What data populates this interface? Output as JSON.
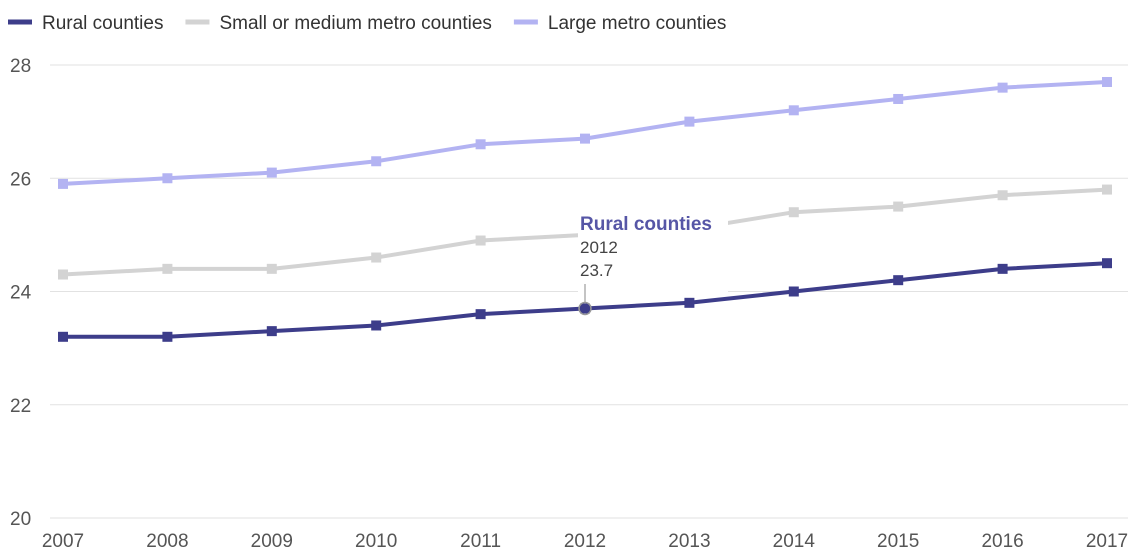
{
  "chart_data": {
    "type": "line",
    "title": "",
    "xlabel": "",
    "ylabel": "",
    "x": [
      2007,
      2008,
      2009,
      2010,
      2011,
      2012,
      2013,
      2014,
      2015,
      2016,
      2017
    ],
    "xtick_labels": [
      "2007",
      "2008",
      "2009",
      "2010",
      "2011",
      "2012",
      "2013",
      "2014",
      "2015",
      "2016",
      "2017"
    ],
    "ylim": [
      20,
      28
    ],
    "yticks": [
      20,
      22,
      24,
      26,
      28
    ],
    "ytick_labels": [
      "20",
      "22",
      "24",
      "26",
      "28"
    ],
    "grid": true,
    "legend_position": "top-left",
    "series": [
      {
        "name": "Rural counties",
        "color": "#3d3d8a",
        "values": [
          23.2,
          23.2,
          23.3,
          23.4,
          23.6,
          23.7,
          23.8,
          24.0,
          24.2,
          24.4,
          24.5
        ]
      },
      {
        "name": "Small or medium metro counties",
        "color": "#d3d3d3",
        "values": [
          24.3,
          24.4,
          24.4,
          24.6,
          24.9,
          25.0,
          25.1,
          25.4,
          25.5,
          25.7,
          25.8
        ]
      },
      {
        "name": "Large metro counties",
        "color": "#b3b3f2",
        "values": [
          25.9,
          26.0,
          26.1,
          26.3,
          26.6,
          26.7,
          27.0,
          27.2,
          27.4,
          27.6,
          27.7
        ]
      }
    ],
    "tooltip": {
      "series_name": "Rural counties",
      "x_label": "2012",
      "value_label": "23.7",
      "color": "#5656a6"
    }
  }
}
